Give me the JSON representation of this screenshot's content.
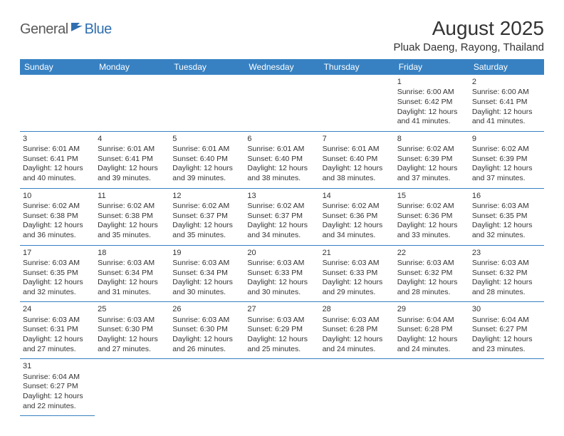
{
  "logo": {
    "general": "General",
    "blue": "Blue"
  },
  "title": "August 2025",
  "location": "Pluak Daeng, Rayong, Thailand",
  "colors": {
    "header_bg": "#3781c2",
    "header_text": "#ffffff",
    "border": "#3781c2",
    "text": "#333333",
    "logo_gray": "#5a5a5a",
    "logo_blue": "#2f6fb0",
    "background": "#ffffff"
  },
  "day_headers": [
    "Sunday",
    "Monday",
    "Tuesday",
    "Wednesday",
    "Thursday",
    "Friday",
    "Saturday"
  ],
  "weeks": [
    [
      null,
      null,
      null,
      null,
      null,
      {
        "n": "1",
        "sr": "Sunrise: 6:00 AM",
        "ss": "Sunset: 6:42 PM",
        "d1": "Daylight: 12 hours",
        "d2": "and 41 minutes."
      },
      {
        "n": "2",
        "sr": "Sunrise: 6:00 AM",
        "ss": "Sunset: 6:41 PM",
        "d1": "Daylight: 12 hours",
        "d2": "and 41 minutes."
      }
    ],
    [
      {
        "n": "3",
        "sr": "Sunrise: 6:01 AM",
        "ss": "Sunset: 6:41 PM",
        "d1": "Daylight: 12 hours",
        "d2": "and 40 minutes."
      },
      {
        "n": "4",
        "sr": "Sunrise: 6:01 AM",
        "ss": "Sunset: 6:41 PM",
        "d1": "Daylight: 12 hours",
        "d2": "and 39 minutes."
      },
      {
        "n": "5",
        "sr": "Sunrise: 6:01 AM",
        "ss": "Sunset: 6:40 PM",
        "d1": "Daylight: 12 hours",
        "d2": "and 39 minutes."
      },
      {
        "n": "6",
        "sr": "Sunrise: 6:01 AM",
        "ss": "Sunset: 6:40 PM",
        "d1": "Daylight: 12 hours",
        "d2": "and 38 minutes."
      },
      {
        "n": "7",
        "sr": "Sunrise: 6:01 AM",
        "ss": "Sunset: 6:40 PM",
        "d1": "Daylight: 12 hours",
        "d2": "and 38 minutes."
      },
      {
        "n": "8",
        "sr": "Sunrise: 6:02 AM",
        "ss": "Sunset: 6:39 PM",
        "d1": "Daylight: 12 hours",
        "d2": "and 37 minutes."
      },
      {
        "n": "9",
        "sr": "Sunrise: 6:02 AM",
        "ss": "Sunset: 6:39 PM",
        "d1": "Daylight: 12 hours",
        "d2": "and 37 minutes."
      }
    ],
    [
      {
        "n": "10",
        "sr": "Sunrise: 6:02 AM",
        "ss": "Sunset: 6:38 PM",
        "d1": "Daylight: 12 hours",
        "d2": "and 36 minutes."
      },
      {
        "n": "11",
        "sr": "Sunrise: 6:02 AM",
        "ss": "Sunset: 6:38 PM",
        "d1": "Daylight: 12 hours",
        "d2": "and 35 minutes."
      },
      {
        "n": "12",
        "sr": "Sunrise: 6:02 AM",
        "ss": "Sunset: 6:37 PM",
        "d1": "Daylight: 12 hours",
        "d2": "and 35 minutes."
      },
      {
        "n": "13",
        "sr": "Sunrise: 6:02 AM",
        "ss": "Sunset: 6:37 PM",
        "d1": "Daylight: 12 hours",
        "d2": "and 34 minutes."
      },
      {
        "n": "14",
        "sr": "Sunrise: 6:02 AM",
        "ss": "Sunset: 6:36 PM",
        "d1": "Daylight: 12 hours",
        "d2": "and 34 minutes."
      },
      {
        "n": "15",
        "sr": "Sunrise: 6:02 AM",
        "ss": "Sunset: 6:36 PM",
        "d1": "Daylight: 12 hours",
        "d2": "and 33 minutes."
      },
      {
        "n": "16",
        "sr": "Sunrise: 6:03 AM",
        "ss": "Sunset: 6:35 PM",
        "d1": "Daylight: 12 hours",
        "d2": "and 32 minutes."
      }
    ],
    [
      {
        "n": "17",
        "sr": "Sunrise: 6:03 AM",
        "ss": "Sunset: 6:35 PM",
        "d1": "Daylight: 12 hours",
        "d2": "and 32 minutes."
      },
      {
        "n": "18",
        "sr": "Sunrise: 6:03 AM",
        "ss": "Sunset: 6:34 PM",
        "d1": "Daylight: 12 hours",
        "d2": "and 31 minutes."
      },
      {
        "n": "19",
        "sr": "Sunrise: 6:03 AM",
        "ss": "Sunset: 6:34 PM",
        "d1": "Daylight: 12 hours",
        "d2": "and 30 minutes."
      },
      {
        "n": "20",
        "sr": "Sunrise: 6:03 AM",
        "ss": "Sunset: 6:33 PM",
        "d1": "Daylight: 12 hours",
        "d2": "and 30 minutes."
      },
      {
        "n": "21",
        "sr": "Sunrise: 6:03 AM",
        "ss": "Sunset: 6:33 PM",
        "d1": "Daylight: 12 hours",
        "d2": "and 29 minutes."
      },
      {
        "n": "22",
        "sr": "Sunrise: 6:03 AM",
        "ss": "Sunset: 6:32 PM",
        "d1": "Daylight: 12 hours",
        "d2": "and 28 minutes."
      },
      {
        "n": "23",
        "sr": "Sunrise: 6:03 AM",
        "ss": "Sunset: 6:32 PM",
        "d1": "Daylight: 12 hours",
        "d2": "and 28 minutes."
      }
    ],
    [
      {
        "n": "24",
        "sr": "Sunrise: 6:03 AM",
        "ss": "Sunset: 6:31 PM",
        "d1": "Daylight: 12 hours",
        "d2": "and 27 minutes."
      },
      {
        "n": "25",
        "sr": "Sunrise: 6:03 AM",
        "ss": "Sunset: 6:30 PM",
        "d1": "Daylight: 12 hours",
        "d2": "and 27 minutes."
      },
      {
        "n": "26",
        "sr": "Sunrise: 6:03 AM",
        "ss": "Sunset: 6:30 PM",
        "d1": "Daylight: 12 hours",
        "d2": "and 26 minutes."
      },
      {
        "n": "27",
        "sr": "Sunrise: 6:03 AM",
        "ss": "Sunset: 6:29 PM",
        "d1": "Daylight: 12 hours",
        "d2": "and 25 minutes."
      },
      {
        "n": "28",
        "sr": "Sunrise: 6:03 AM",
        "ss": "Sunset: 6:28 PM",
        "d1": "Daylight: 12 hours",
        "d2": "and 24 minutes."
      },
      {
        "n": "29",
        "sr": "Sunrise: 6:04 AM",
        "ss": "Sunset: 6:28 PM",
        "d1": "Daylight: 12 hours",
        "d2": "and 24 minutes."
      },
      {
        "n": "30",
        "sr": "Sunrise: 6:04 AM",
        "ss": "Sunset: 6:27 PM",
        "d1": "Daylight: 12 hours",
        "d2": "and 23 minutes."
      }
    ],
    [
      {
        "n": "31",
        "sr": "Sunrise: 6:04 AM",
        "ss": "Sunset: 6:27 PM",
        "d1": "Daylight: 12 hours",
        "d2": "and 22 minutes."
      },
      null,
      null,
      null,
      null,
      null,
      null
    ]
  ]
}
